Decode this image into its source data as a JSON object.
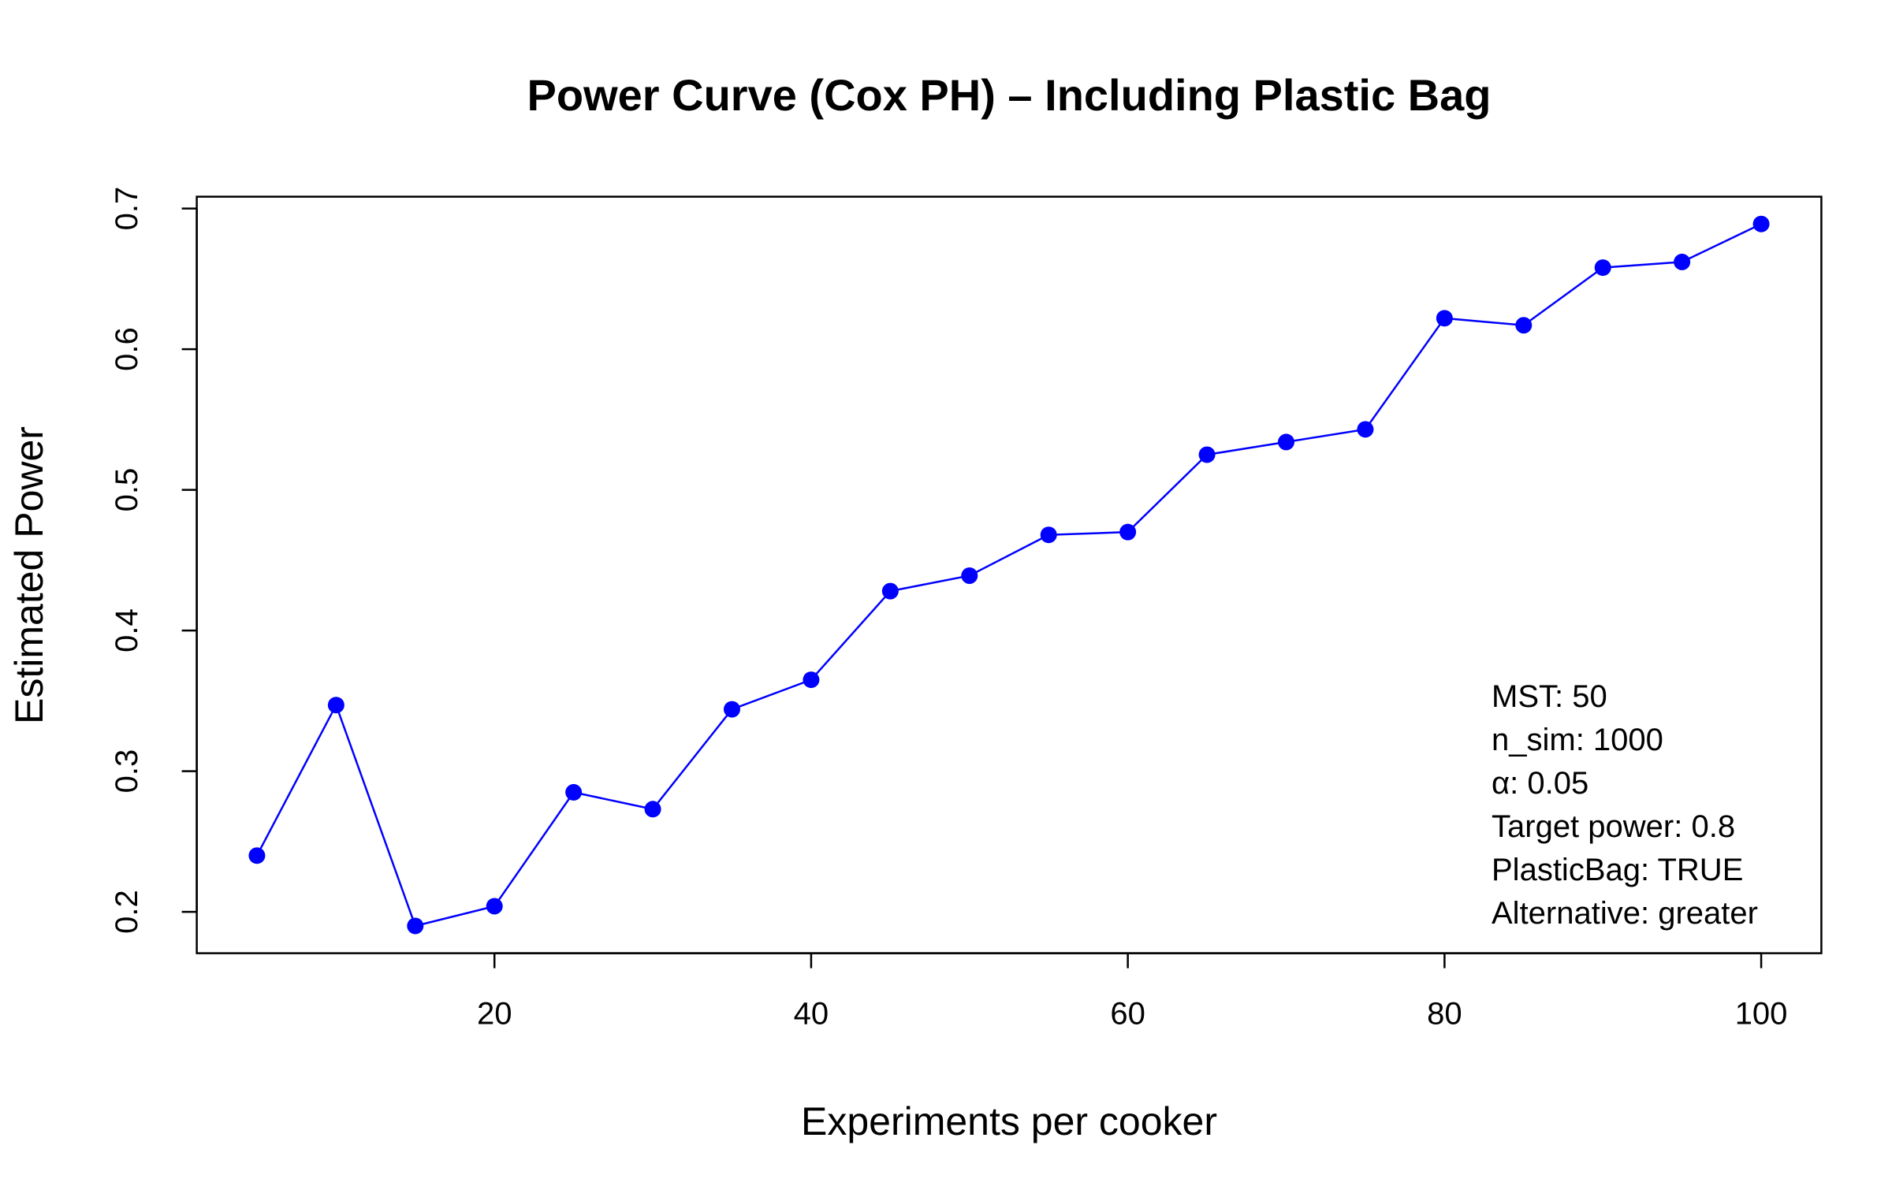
{
  "chart_data": {
    "type": "line",
    "title": "Power Curve (Cox PH) – Including Plastic Bag",
    "xlabel": "Experiments per cooker",
    "ylabel": "Estimated Power",
    "x": [
      5,
      10,
      15,
      20,
      25,
      30,
      35,
      40,
      45,
      50,
      55,
      60,
      65,
      70,
      75,
      80,
      85,
      90,
      95,
      100
    ],
    "series": [
      {
        "values": [
          0.24,
          0.347,
          0.19,
          0.204,
          0.285,
          0.273,
          0.344,
          0.365,
          0.428,
          0.439,
          0.468,
          0.47,
          0.525,
          0.534,
          0.543,
          0.622,
          0.617,
          0.658,
          0.662,
          0.689
        ],
        "color": "#0000ff"
      }
    ],
    "xlim": [
      1.2,
      103.8
    ],
    "ylim": [
      0.1706,
      0.7084
    ],
    "xticks": [
      20,
      40,
      60,
      80,
      100
    ],
    "xtick_labels": [
      "20",
      "40",
      "60",
      "80",
      "100"
    ],
    "yticks": [
      0.2,
      0.3,
      0.4,
      0.5,
      0.6,
      0.7
    ],
    "ytick_labels": [
      "0.2",
      "0.3",
      "0.4",
      "0.5",
      "0.6",
      "0.7"
    ],
    "grid": false,
    "legend": "none",
    "annotation": {
      "placement": "bottom-right",
      "lines": [
        "MST: 50",
        "n_sim: 1000",
        "α: 0.05",
        "Target power: 0.8",
        "PlasticBag: TRUE",
        "Alternative: greater"
      ]
    }
  }
}
